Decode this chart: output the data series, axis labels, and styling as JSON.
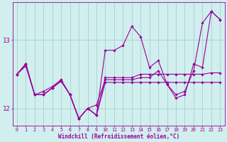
{
  "xlabel": "Windchill (Refroidissement éolien,°C)",
  "bg_color": "#d0efee",
  "grid_color": "#aed4d2",
  "line_color": "#990099",
  "xlim_min": -0.5,
  "xlim_max": 23.5,
  "ylim_min": 11.75,
  "ylim_max": 13.55,
  "yticks": [
    12,
    13
  ],
  "xticks": [
    0,
    1,
    2,
    3,
    4,
    5,
    6,
    7,
    8,
    9,
    10,
    11,
    12,
    13,
    14,
    15,
    16,
    17,
    18,
    19,
    20,
    21,
    22,
    23
  ],
  "series": [
    [
      12.5,
      12.65,
      12.2,
      12.2,
      12.3,
      12.4,
      12.2,
      11.85,
      12.0,
      11.9,
      12.85,
      12.85,
      12.92,
      13.2,
      13.05,
      12.6,
      12.7,
      12.35,
      12.2,
      12.25,
      12.55,
      13.25,
      13.42,
      13.3
    ],
    [
      12.5,
      12.65,
      12.2,
      12.2,
      12.3,
      12.4,
      12.2,
      11.85,
      12.0,
      11.9,
      12.45,
      12.45,
      12.45,
      12.45,
      12.5,
      12.5,
      12.5,
      12.5,
      12.5,
      12.5,
      12.5,
      12.5,
      12.52,
      12.52
    ],
    [
      12.5,
      12.65,
      12.2,
      12.2,
      12.3,
      12.4,
      12.2,
      11.85,
      12.0,
      12.05,
      12.42,
      12.42,
      12.42,
      12.42,
      12.45,
      12.45,
      12.55,
      12.35,
      12.15,
      12.2,
      12.65,
      12.6,
      13.42,
      13.3
    ],
    [
      12.5,
      12.62,
      12.2,
      12.25,
      12.32,
      12.42,
      12.2,
      11.85,
      12.0,
      11.9,
      12.38,
      12.38,
      12.38,
      12.38,
      12.38,
      12.38,
      12.38,
      12.38,
      12.38,
      12.38,
      12.38,
      12.38,
      12.38,
      12.38
    ]
  ]
}
